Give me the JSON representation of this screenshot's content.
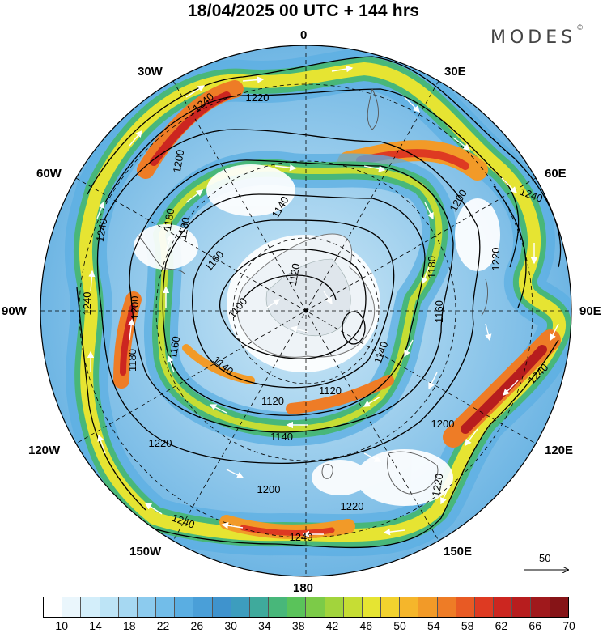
{
  "title": "18/04/2025  00 UTC  + 144 hrs",
  "brand": "MODES",
  "brand_mark": "©",
  "longitude_labels": {
    "lon_0": "0",
    "lon_30e": "30E",
    "lon_60e": "60E",
    "lon_90e": "90E",
    "lon_120e": "120E",
    "lon_150e": "150E",
    "lon_180": "180",
    "lon_150w": "150W",
    "lon_120w": "120W",
    "lon_90w": "90W",
    "lon_60w": "60W",
    "lon_30w": "30W"
  },
  "contour_labels": [
    "1240",
    "1220",
    "1200",
    "1180",
    "1160",
    "1140",
    "1120",
    "1100",
    "1240",
    "1220",
    "1200",
    "1180",
    "1160",
    "1140",
    "1120",
    "1100",
    "1120",
    "1140",
    "1160",
    "1180",
    "1200",
    "1220",
    "1240",
    "1220",
    "1200",
    "1240",
    "1220",
    "1200",
    "1180",
    "1160",
    "1140",
    "1120"
  ],
  "wind_scale": {
    "label": "50"
  },
  "colorbar": {
    "colors": [
      "#ffffff",
      "#eaf6fc",
      "#d3eefa",
      "#bde4f6",
      "#a6d8f2",
      "#8ccbee",
      "#72bde9",
      "#5aaee2",
      "#4a9fd8",
      "#3f93cd",
      "#3d9dbe",
      "#3faa9c",
      "#48b77a",
      "#5ac35a",
      "#7ccb48",
      "#a2d43c",
      "#c6dd34",
      "#e6e432",
      "#f2d22e",
      "#f5b62b",
      "#f29a28",
      "#ee7c26",
      "#e85a24",
      "#de3a22",
      "#cc2620",
      "#b71d1e",
      "#a0191c",
      "#861417"
    ],
    "tick_labels": [
      "10",
      "14",
      "18",
      "22",
      "26",
      "30",
      "34",
      "38",
      "42",
      "46",
      "50",
      "54",
      "58",
      "62",
      "66",
      "70"
    ]
  }
}
